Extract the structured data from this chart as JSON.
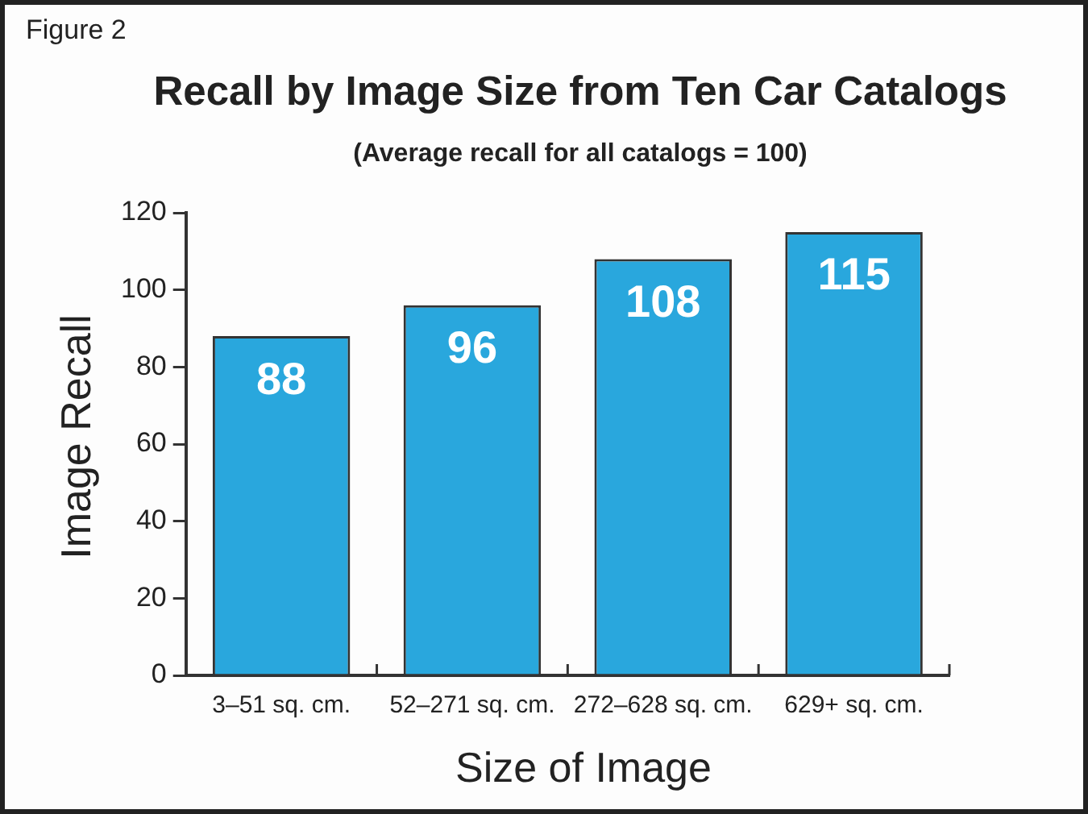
{
  "chart_data": {
    "type": "bar",
    "title": "Recall by Image Size from Ten Car Catalogs",
    "subtitle": "(Average recall for all catalogs = 100)",
    "xlabel": "Size of Image",
    "ylabel": "Image Recall",
    "annotations": [
      "Figure 2"
    ],
    "categories": [
      "3–51 sq. cm.",
      "52–271 sq. cm.",
      "272–628 sq. cm.",
      "629+ sq. cm."
    ],
    "values": [
      88,
      96,
      108,
      115
    ],
    "color": "#29a7dd",
    "ylim": [
      0,
      120
    ],
    "yticks": [
      0,
      20,
      40,
      60,
      80,
      100,
      120
    ],
    "data_labels": true,
    "grid": false,
    "legend": false
  }
}
